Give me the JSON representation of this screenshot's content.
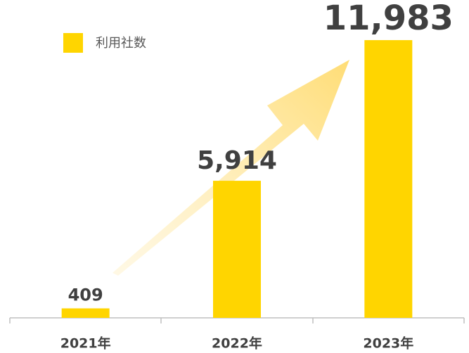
{
  "chart_data": {
    "type": "bar",
    "series": [
      {
        "name": "利用社数",
        "color": "#FFD500",
        "values": [
          409,
          5914,
          11983
        ],
        "value_labels": [
          "409",
          "5,914",
          "11,983"
        ]
      }
    ],
    "categories": [
      "2021年",
      "2022年",
      "2023年"
    ],
    "ylim": [
      0,
      12000
    ]
  }
}
